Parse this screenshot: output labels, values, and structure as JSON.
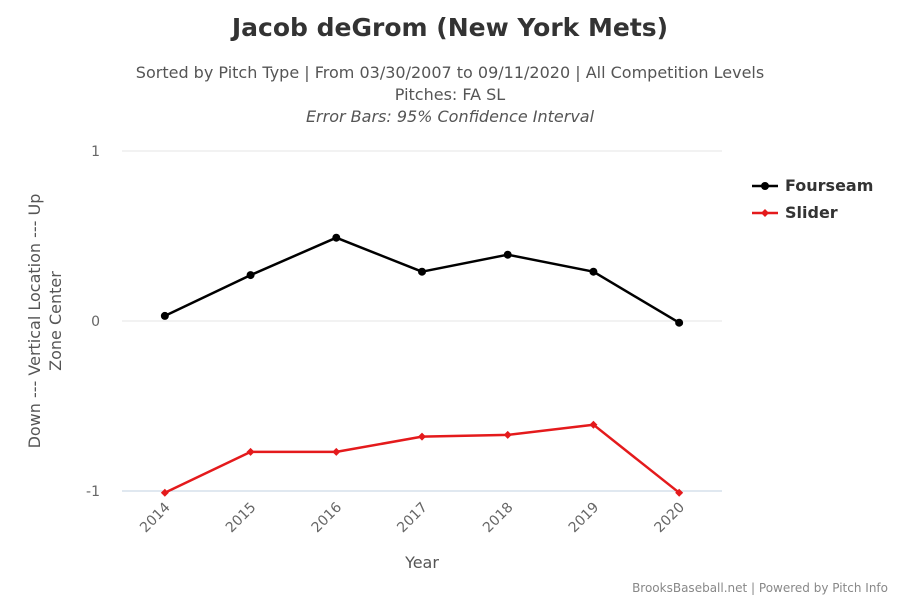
{
  "header": {
    "title": "Jacob deGrom (New York Mets)",
    "subtitle_line1": "Sorted by Pitch Type | From 03/30/2007 to 09/11/2020 | All Competition Levels",
    "subtitle_line2": "Pitches: FA SL",
    "subtitle_line3": "Error Bars: 95% Confidence Interval"
  },
  "credit": "BrooksBaseball.net | Powered by Pitch Info",
  "chart_data": {
    "type": "line",
    "title": "Jacob deGrom (New York Mets)",
    "xlabel": "Year",
    "ylabel_line1": "Down --- Vertical Location --- Up",
    "ylabel_line2": "Zone Center",
    "categories": [
      "2014",
      "2015",
      "2016",
      "2017",
      "2018",
      "2019",
      "2020"
    ],
    "y_ticks": [
      {
        "value": 1,
        "label": "1"
      },
      {
        "value": 0,
        "label": "0"
      },
      {
        "value": -1,
        "label": "-1"
      }
    ],
    "ylim": [
      -1,
      1
    ],
    "grid": true,
    "legend_position": "right",
    "series": [
      {
        "name": "Fourseam",
        "color": "#000000",
        "values": [
          0.03,
          0.27,
          0.49,
          0.29,
          0.39,
          0.29,
          -0.01
        ]
      },
      {
        "name": "Slider",
        "color": "#e41a1c",
        "values": [
          -1.01,
          -0.77,
          -0.77,
          -0.68,
          -0.67,
          -0.61,
          -1.01
        ]
      }
    ]
  }
}
